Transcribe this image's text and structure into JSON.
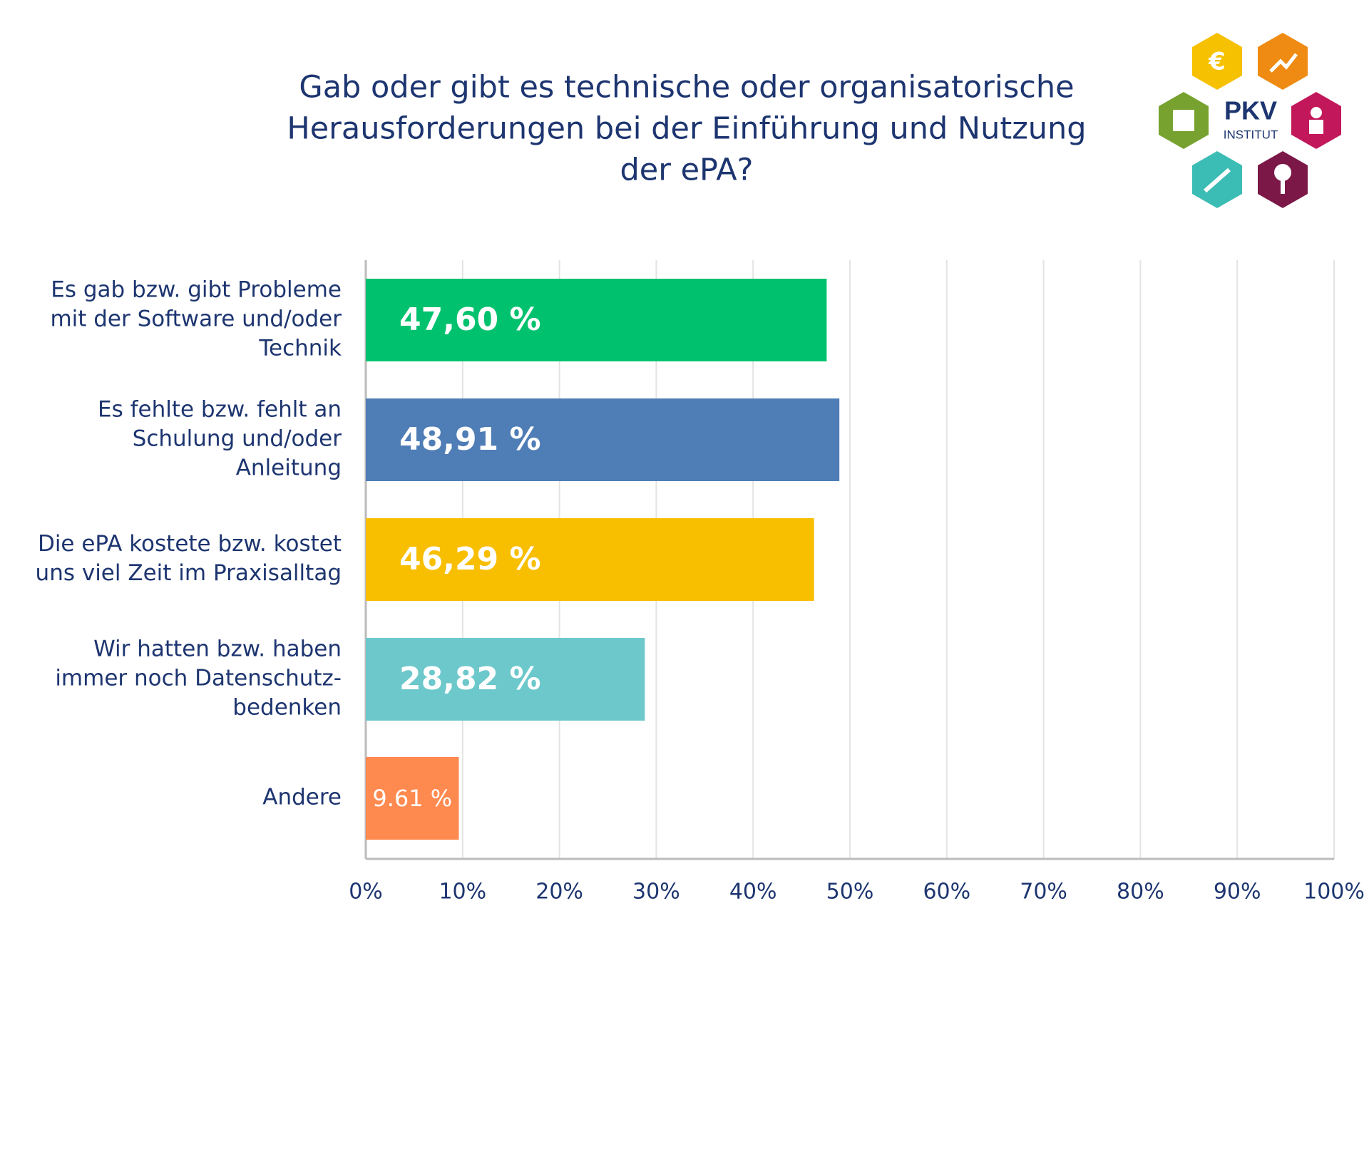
{
  "chart_data": {
    "type": "hbar",
    "title": [
      "Gab oder gibt es technische oder organisatorische",
      "Herausforderungen bei der Einführung und Nutzung",
      "der ePA?"
    ],
    "categories": [
      [
        "Es gab bzw. gibt Probleme",
        "mit der Software und/oder",
        "Technik"
      ],
      [
        "Es fehlte bzw. fehlt an",
        "Schulung und/oder",
        "Anleitung"
      ],
      [
        "Die ePA kostete bzw. kostet",
        "uns viel Zeit im Praxisalltag"
      ],
      [
        "Wir hatten bzw. haben",
        "immer noch Datenschutz-",
        "bedenken"
      ],
      [
        "Andere"
      ]
    ],
    "values": [
      47.6,
      48.91,
      46.29,
      28.82,
      9.61
    ],
    "value_labels": [
      "47,60 %",
      "48,91 %",
      "46,29 %",
      "28,82 %",
      "9.61 %"
    ],
    "colors": [
      "#00c16e",
      "#4f7db5",
      "#f8be00",
      "#6cc8cb",
      "#ff8a50"
    ],
    "xlim": [
      0,
      100
    ],
    "xticks": [
      {
        "value": 0,
        "label": "0%"
      },
      {
        "value": 10,
        "label": "10%"
      },
      {
        "value": 20,
        "label": "20%"
      },
      {
        "value": 30,
        "label": "30%"
      },
      {
        "value": 40,
        "label": "40%"
      },
      {
        "value": 50,
        "label": "50%"
      },
      {
        "value": 60,
        "label": "60%"
      },
      {
        "value": 70,
        "label": "70%"
      },
      {
        "value": 80,
        "label": "80%"
      },
      {
        "value": 90,
        "label": "90%"
      },
      {
        "value": 100,
        "label": "100%"
      }
    ],
    "grid": true
  },
  "logo": {
    "name": "PKV",
    "subtitle": "INSTITUT"
  }
}
